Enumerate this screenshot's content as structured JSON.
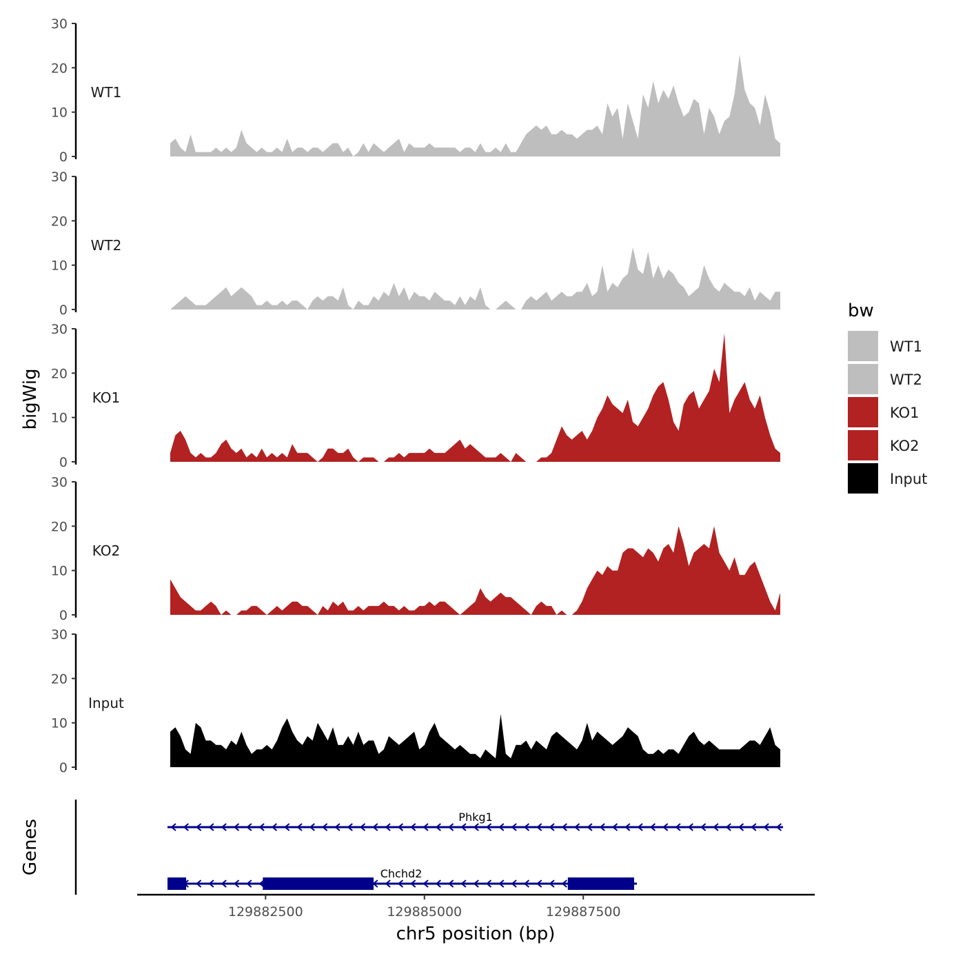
{
  "chart_data": {
    "type": "area",
    "title": "",
    "ylabel": "bigWig",
    "xlabel": "chr5 position (bp)",
    "x_range": [
      129881000,
      129890600
    ],
    "x_ticks": [
      129882500,
      129885000,
      129887500
    ],
    "x_tick_labels": [
      "129882500",
      "129885000",
      "129887500"
    ],
    "ylim": [
      0,
      30
    ],
    "y_ticks": [
      0,
      10,
      20,
      30
    ],
    "y_tick_labels": [
      "0",
      "10",
      "20",
      "30"
    ],
    "legend": {
      "title": "bw",
      "position": "right",
      "entries": [
        {
          "label": "WT1",
          "color": "#bebebe"
        },
        {
          "label": "WT2",
          "color": "#bebebe"
        },
        {
          "label": "KO1",
          "color": "#b22222"
        },
        {
          "label": "KO2",
          "color": "#b22222"
        },
        {
          "label": "Input",
          "color": "#000000"
        }
      ]
    },
    "series": [
      {
        "name": "WT1",
        "color": "#bebebe",
        "values": [
          3,
          4,
          2,
          1,
          5,
          1,
          1,
          1,
          1,
          2,
          1,
          2,
          1,
          2,
          6,
          3,
          2,
          1,
          2,
          1,
          1,
          2,
          1,
          4,
          1,
          2,
          2,
          1,
          2,
          2,
          1,
          2,
          3,
          3,
          1,
          2,
          0,
          1,
          3,
          1,
          3,
          2,
          1,
          2,
          3,
          4,
          1,
          3,
          2,
          2,
          2,
          3,
          2,
          2,
          2,
          2,
          2,
          1,
          2,
          2,
          1,
          3,
          1,
          1,
          2,
          1,
          3,
          1,
          1,
          3,
          5,
          6,
          7,
          6,
          7,
          5,
          5,
          6,
          5,
          5,
          4,
          5,
          6,
          6,
          7,
          5,
          12,
          9,
          11,
          4,
          12,
          8,
          4,
          14,
          11,
          17,
          12,
          15,
          13,
          16,
          12,
          9,
          10,
          13,
          12,
          5,
          11,
          9,
          5,
          8,
          9,
          14,
          23,
          15,
          12,
          11,
          7,
          14,
          10,
          4,
          3
        ]
      },
      {
        "name": "WT2",
        "color": "#bebebe",
        "values": [
          0,
          1,
          2,
          3,
          2,
          1,
          1,
          1,
          2,
          3,
          4,
          5,
          3,
          4,
          5,
          4,
          3,
          1,
          1,
          2,
          1,
          1,
          2,
          1,
          2,
          2,
          1,
          0,
          2,
          3,
          2,
          3,
          3,
          2,
          5,
          1,
          0,
          2,
          1,
          1,
          3,
          2,
          4,
          3,
          6,
          3,
          5,
          2,
          4,
          3,
          3,
          2,
          4,
          3,
          2,
          2,
          1,
          3,
          1,
          3,
          2,
          5,
          1,
          0,
          0,
          1,
          2,
          1,
          0,
          0,
          2,
          3,
          2,
          3,
          4,
          2,
          3,
          4,
          3,
          3,
          4,
          4,
          6,
          3,
          4,
          10,
          4,
          6,
          5,
          7,
          8,
          14,
          9,
          8,
          13,
          7,
          10,
          7,
          9,
          8,
          6,
          5,
          3,
          4,
          5,
          10,
          7,
          5,
          4,
          6,
          5,
          4,
          4,
          3,
          5,
          2,
          4,
          3,
          2,
          4,
          4
        ]
      },
      {
        "name": "KO1",
        "color": "#b22222",
        "values": [
          2,
          6,
          7,
          5,
          2,
          1,
          2,
          1,
          1,
          2,
          4,
          5,
          3,
          2,
          3,
          1,
          2,
          1,
          3,
          1,
          2,
          1,
          2,
          1,
          4,
          2,
          2,
          2,
          1,
          0,
          1,
          3,
          3,
          2,
          2,
          3,
          1,
          0,
          1,
          1,
          1,
          0,
          0,
          1,
          1,
          2,
          1,
          2,
          2,
          2,
          2,
          3,
          2,
          2,
          2,
          3,
          4,
          5,
          3,
          4,
          3,
          2,
          1,
          1,
          1,
          2,
          1,
          0,
          2,
          1,
          0,
          0,
          0,
          1,
          1,
          2,
          5,
          8,
          6,
          5,
          6,
          7,
          5,
          7,
          10,
          12,
          15,
          13,
          12,
          11,
          14,
          9,
          8,
          10,
          12,
          15,
          17,
          18,
          14,
          9,
          7,
          13,
          15,
          16,
          12,
          14,
          16,
          21,
          18,
          29,
          11,
          14,
          16,
          18,
          14,
          12,
          15,
          10,
          6,
          3,
          2
        ]
      },
      {
        "name": "KO2",
        "color": "#b22222",
        "values": [
          8,
          6,
          4,
          3,
          2,
          1,
          1,
          2,
          3,
          2,
          0,
          1,
          0,
          0,
          1,
          1,
          2,
          2,
          1,
          0,
          1,
          2,
          1,
          2,
          3,
          3,
          2,
          2,
          1,
          0,
          2,
          1,
          3,
          2,
          3,
          1,
          1,
          2,
          1,
          2,
          2,
          2,
          3,
          2,
          2,
          1,
          2,
          1,
          1,
          2,
          2,
          3,
          2,
          3,
          3,
          2,
          1,
          0,
          1,
          2,
          3,
          6,
          4,
          3,
          4,
          5,
          4,
          4,
          3,
          2,
          1,
          0,
          2,
          3,
          2,
          2,
          0,
          1,
          0,
          0,
          1,
          3,
          6,
          8,
          10,
          9,
          11,
          10,
          10,
          14,
          15,
          15,
          14,
          13,
          15,
          14,
          12,
          15,
          16,
          14,
          20,
          16,
          11,
          14,
          15,
          16,
          15,
          20,
          14,
          12,
          10,
          13,
          9,
          9,
          11,
          12,
          9,
          6,
          3,
          1,
          5
        ]
      },
      {
        "name": "Input",
        "color": "#000000",
        "values": [
          8,
          9,
          7,
          4,
          3,
          10,
          9,
          6,
          6,
          5,
          5,
          4,
          6,
          5,
          8,
          5,
          3,
          4,
          4,
          5,
          4,
          6,
          9,
          11,
          8,
          6,
          5,
          7,
          6,
          10,
          8,
          6,
          9,
          5,
          5,
          7,
          5,
          8,
          5,
          6,
          6,
          3,
          4,
          7,
          6,
          5,
          6,
          7,
          8,
          4,
          5,
          8,
          10,
          7,
          6,
          5,
          4,
          5,
          4,
          3,
          3,
          2,
          4,
          3,
          2,
          12,
          3,
          2,
          5,
          5,
          6,
          4,
          6,
          5,
          4,
          7,
          8,
          7,
          6,
          5,
          4,
          6,
          10,
          6,
          8,
          7,
          6,
          5,
          6,
          7,
          9,
          8,
          7,
          4,
          3,
          3,
          4,
          3,
          4,
          4,
          3,
          5,
          7,
          8,
          6,
          5,
          6,
          5,
          4,
          4,
          4,
          4,
          4,
          5,
          6,
          6,
          5,
          7,
          9,
          5,
          4
        ]
      }
    ],
    "genes": {
      "track_label": "Genes",
      "items": [
        {
          "name": "Phkg1",
          "start": 129881000,
          "end": 129890600,
          "strand": "-",
          "exons": []
        },
        {
          "name": "Chchd2",
          "start": 129881000,
          "end": 129888300,
          "strand": "-",
          "exons": [
            [
              129881000,
              129881250
            ],
            [
              129882500,
              129884200
            ],
            [
              129887300,
              129888300
            ]
          ]
        }
      ]
    }
  }
}
